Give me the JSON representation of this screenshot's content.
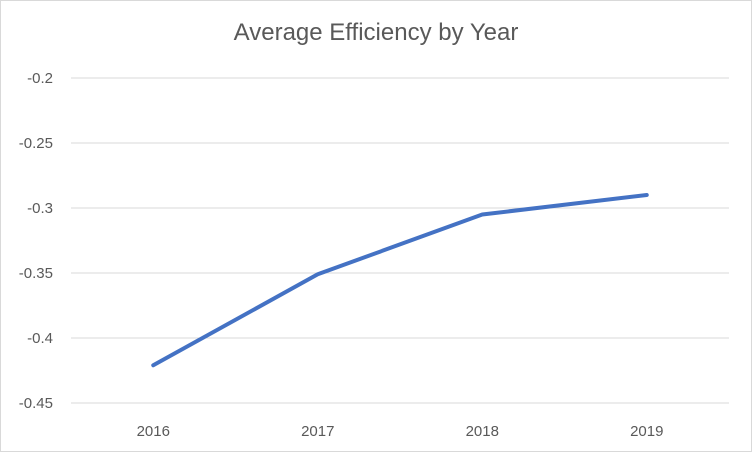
{
  "chart_data": {
    "type": "line",
    "title": "Average Efficiency by Year",
    "xlabel": "",
    "ylabel": "",
    "categories": [
      "2016",
      "2017",
      "2018",
      "2019"
    ],
    "series": [
      {
        "values": [
          -0.421,
          -0.351,
          -0.305,
          -0.29
        ]
      }
    ],
    "ylim": [
      -0.45,
      -0.2
    ],
    "yticks": [
      "-0.2",
      "-0.25",
      "-0.3",
      "-0.35",
      "-0.4",
      "-0.45"
    ],
    "ytick_values": [
      -0.2,
      -0.25,
      -0.3,
      -0.35,
      -0.4,
      -0.45
    ],
    "grid": true,
    "legend": "none",
    "colors": {
      "line": "#4472C4",
      "grid": "#d9d9d9",
      "text": "#595959"
    }
  }
}
